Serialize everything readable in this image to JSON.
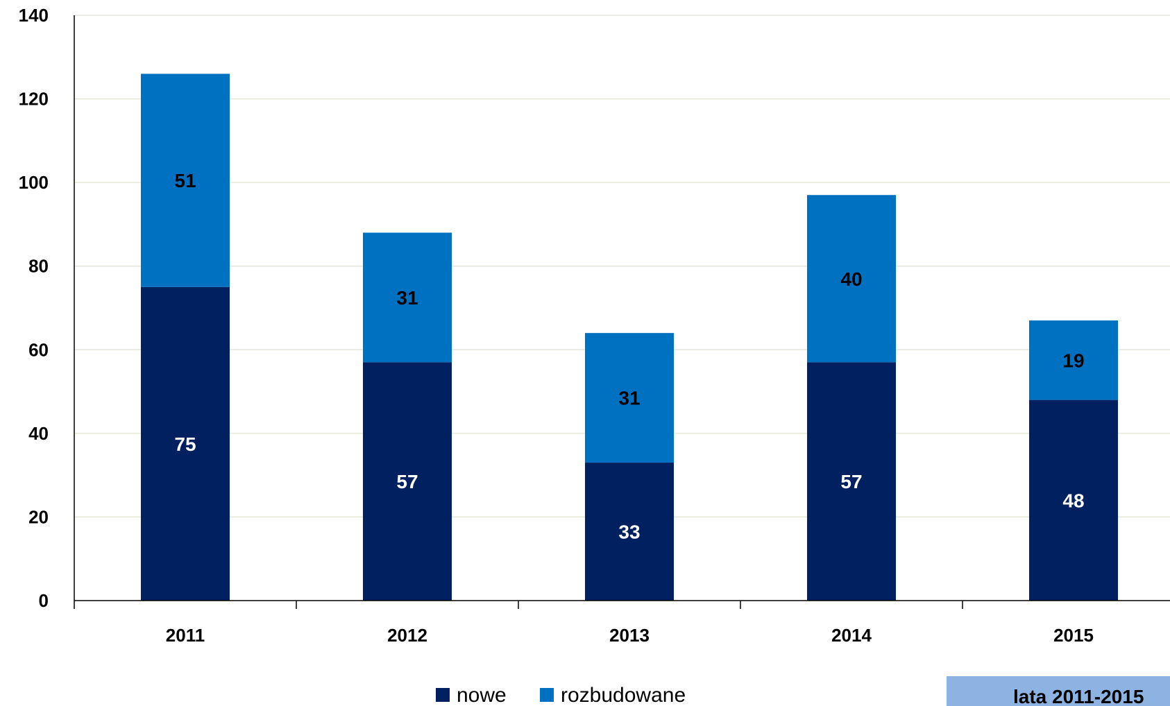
{
  "chart_data": {
    "type": "bar",
    "stacked": true,
    "categories": [
      "2011",
      "2012",
      "2013",
      "2014",
      "2015"
    ],
    "series": [
      {
        "name": "nowe",
        "values": [
          75,
          57,
          33,
          57,
          48
        ],
        "color": "#002060",
        "label_color": "#ffffff"
      },
      {
        "name": "rozbudowane",
        "values": [
          51,
          31,
          31,
          40,
          19
        ],
        "color": "#0070c0",
        "label_color": "#000000"
      }
    ],
    "ylim": [
      0,
      140
    ],
    "yticks": [
      "0",
      "20",
      "40",
      "60",
      "80",
      "100",
      "120",
      "140"
    ],
    "grid": true,
    "legend_position": "bottom"
  },
  "corner_tab": {
    "label": "lata 2011-2015",
    "color": "#8db3e2"
  }
}
